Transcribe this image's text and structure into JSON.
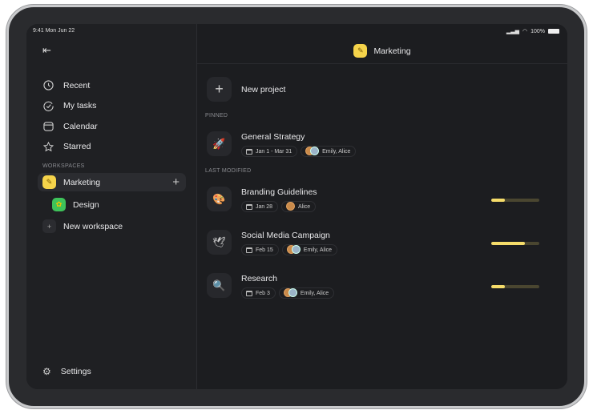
{
  "status": {
    "time": "9:41  Mon Jun 22",
    "battery": "100%"
  },
  "sidebar": {
    "nav": [
      {
        "label": "Recent",
        "icon": "clock-icon"
      },
      {
        "label": "My tasks",
        "icon": "check-circle-icon"
      },
      {
        "label": "Calendar",
        "icon": "calendar-icon"
      },
      {
        "label": "Starred",
        "icon": "star-icon"
      }
    ],
    "workspaces_label": "WORKSPACES",
    "workspaces": [
      {
        "label": "Marketing",
        "color": "#f5d34a",
        "active": true
      },
      {
        "label": "Design",
        "color": "#3ec35a"
      }
    ],
    "new_workspace": "New workspace",
    "settings": "Settings"
  },
  "header": {
    "title": "Marketing"
  },
  "main": {
    "new_project": "New project",
    "pinned_label": "PINNED",
    "last_modified_label": "LAST MODIFIED",
    "projects": [
      {
        "title": "General Strategy",
        "date": "Jan 1 - Mar 31",
        "people": "Emily, Alice",
        "icon": "🚀"
      },
      {
        "title": "Branding Guidelines",
        "date": "Jan 28",
        "people": "Alice",
        "icon": "🎨",
        "progress": 28
      },
      {
        "title": "Social Media Campaign",
        "date": "Feb 15",
        "people": "Emily, Alice",
        "icon": "🕊",
        "progress": 70
      },
      {
        "title": "Research",
        "date": "Feb 3",
        "people": "Emily, Alice",
        "icon": "🔍",
        "progress": 28
      }
    ]
  },
  "colors": {
    "accent": "#f5dc6a"
  }
}
